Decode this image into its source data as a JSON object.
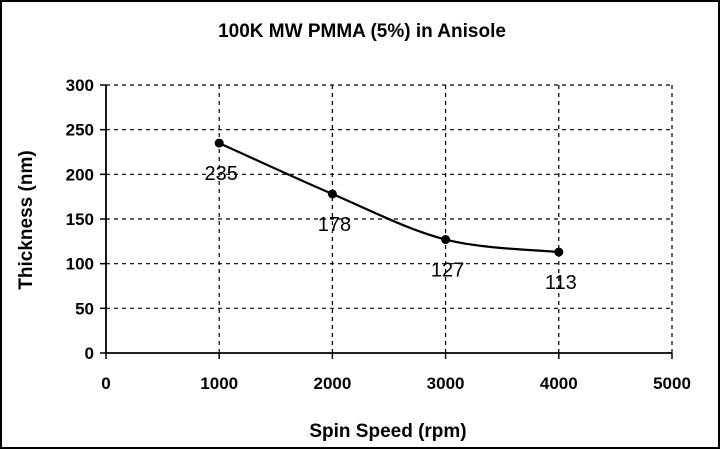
{
  "chart_data": {
    "type": "scatter",
    "title": "100K MW PMMA (5%) in Anisole",
    "xlabel": "Spin Speed (rpm)",
    "ylabel": "Thickness (nm)",
    "xlim": [
      0,
      5000
    ],
    "ylim": [
      0,
      300
    ],
    "xticks": [
      "0",
      "1000",
      "2000",
      "3000",
      "4000",
      "5000"
    ],
    "yticks": [
      "0",
      "50",
      "100",
      "150",
      "200",
      "250",
      "300"
    ],
    "grid": "dashed",
    "legend": "none",
    "trendline": "smooth",
    "series": [
      {
        "x": [
          1000,
          2000,
          3000,
          4000
        ],
        "y": [
          235,
          178,
          127,
          113
        ],
        "labels": [
          "235",
          "178",
          "127",
          "113"
        ]
      }
    ],
    "colors": {
      "line": "#000000",
      "grid": "#000000",
      "background": "#ffffff"
    }
  }
}
